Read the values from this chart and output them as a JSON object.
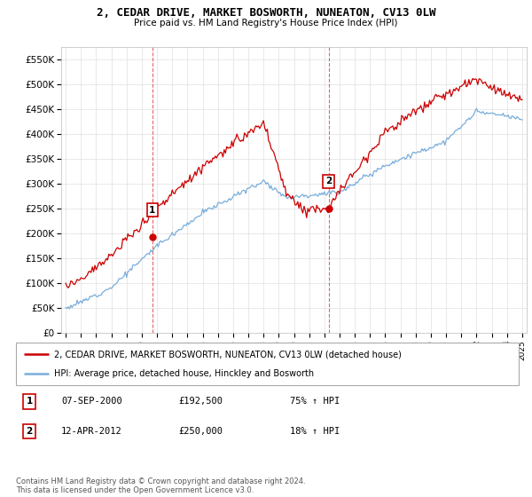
{
  "title": "2, CEDAR DRIVE, MARKET BOSWORTH, NUNEATON, CV13 0LW",
  "subtitle": "Price paid vs. HM Land Registry's House Price Index (HPI)",
  "legend_line1": "2, CEDAR DRIVE, MARKET BOSWORTH, NUNEATON, CV13 0LW (detached house)",
  "legend_line2": "HPI: Average price, detached house, Hinckley and Bosworth",
  "transaction1_label": "1",
  "transaction1_date": "07-SEP-2000",
  "transaction1_price": "£192,500",
  "transaction1_hpi": "75% ↑ HPI",
  "transaction2_label": "2",
  "transaction2_date": "12-APR-2012",
  "transaction2_price": "£250,000",
  "transaction2_hpi": "18% ↑ HPI",
  "footer": "Contains HM Land Registry data © Crown copyright and database right 2024.\nThis data is licensed under the Open Government Licence v3.0.",
  "ylim": [
    0,
    575000
  ],
  "yticks": [
    0,
    50000,
    100000,
    150000,
    200000,
    250000,
    300000,
    350000,
    400000,
    450000,
    500000,
    550000
  ],
  "red_color": "#cc0000",
  "blue_color": "#7aaddb",
  "bg_color": "#ffffff",
  "grid_color": "#e0e0e0",
  "transaction1_x": 2000.69,
  "transaction1_y": 192500,
  "transaction2_x": 2012.28,
  "transaction2_y": 250000,
  "dashed1_x": 2000.69,
  "dashed2_x": 2012.28,
  "xlim_left": 1994.7,
  "xlim_right": 2025.3
}
